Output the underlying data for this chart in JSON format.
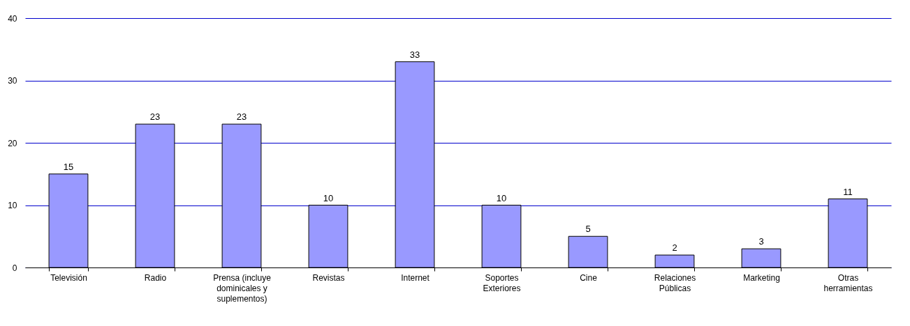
{
  "chart_data": {
    "type": "bar",
    "categories": [
      "Televisión",
      "Radio",
      "Prensa (incluye dominicales y suplementos)",
      "Revistas",
      "Internet",
      "Soportes Exteriores",
      "Cine",
      "Relaciones Públicas",
      "Marketing",
      "Otras herramientas"
    ],
    "values": [
      15,
      23,
      23,
      10,
      33,
      10,
      5,
      2,
      3,
      11
    ],
    "color": "#9999ff",
    "ylim": [
      0,
      40
    ],
    "yticks": [
      0,
      10,
      20,
      30,
      40
    ],
    "grid": "y",
    "data_labels": true
  }
}
